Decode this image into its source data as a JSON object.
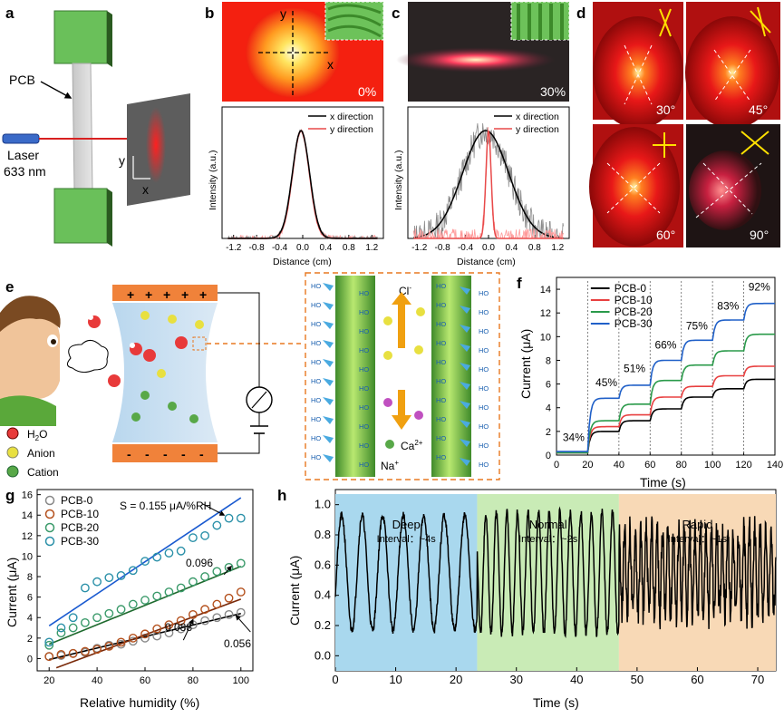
{
  "panels": {
    "a": {
      "letter": "a",
      "pcb": "PCB",
      "laser1": "Laser",
      "laser2": "633 nm",
      "y": "y",
      "x": "x"
    },
    "b": {
      "letter": "b",
      "pct": "0%",
      "x": "x",
      "y": "y",
      "legend": [
        "x direction",
        "y direction"
      ],
      "ylabel": "Intensity (a.u.)",
      "xlabel": "Distance (cm)",
      "ticks": [
        "-1.2",
        "-0.8",
        "-0.4",
        "0.0",
        "0.4",
        "0.8",
        "1.2"
      ]
    },
    "c": {
      "letter": "c",
      "pct": "30%",
      "legend": [
        "x direction",
        "y direction"
      ],
      "ylabel": "Intensity (a.u.)",
      "xlabel": "Distance (cm)",
      "ticks": [
        "-1.2",
        "-0.8",
        "-0.4",
        "0.0",
        "0.4",
        "0.8",
        "1.2"
      ]
    },
    "d": {
      "letter": "d",
      "angles": [
        "30°",
        "45°",
        "60°",
        "90°"
      ]
    },
    "e": {
      "letter": "e",
      "plus": "+",
      "minus": "-",
      "h2o": "H",
      "h2o_sub": "2",
      "h2o_end": "O",
      "anion": "Anion",
      "cation": "Cation",
      "cl": "Cl",
      "cl_sup": "-",
      "ca": "Ca",
      "ca_sup": "2+",
      "na": "Na",
      "na_sup": "+",
      "oh": "HO"
    },
    "f": {
      "letter": "f",
      "ylabel": "Current (μA)",
      "xlabel": "Time (s)",
      "pcts": [
        "34%",
        "45%",
        "51%",
        "66%",
        "75%",
        "83%",
        "92%"
      ]
    },
    "g": {
      "letter": "g",
      "ylabel": "Current (μA)",
      "xlabel": "Relative humidity (%)",
      "slope_main": "S = 0.155 μA/%RH",
      "slope_20": "0.096",
      "slope_10": "0.088",
      "slope_0": "0.056"
    },
    "h": {
      "letter": "h",
      "ylabel": "Current (μA)",
      "xlabel": "Time (s)",
      "regions": [
        {
          "name": "Deep",
          "interval": "Interval：~4s"
        },
        {
          "name": "Normal",
          "interval": "Interval：~2s"
        },
        {
          "name": "Rapid",
          "interval": "Interval：~1s"
        }
      ]
    }
  },
  "chart_data": [
    {
      "type": "line",
      "panel": "b",
      "xlabel": "Distance (cm)",
      "ylabel": "Intensity (a.u.)",
      "xlim": [
        -1.4,
        1.4
      ],
      "series": [
        {
          "name": "x direction",
          "color": "#000000"
        },
        {
          "name": "y direction",
          "color": "#e84a4a"
        }
      ]
    },
    {
      "type": "line",
      "panel": "c",
      "xlabel": "Distance (cm)",
      "ylabel": "Intensity (a.u.)",
      "xlim": [
        -1.4,
        1.4
      ],
      "series": [
        {
          "name": "x direction",
          "color": "#000000"
        },
        {
          "name": "y direction",
          "color": "#e84a4a"
        }
      ]
    },
    {
      "type": "line",
      "panel": "f",
      "xlabel": "Time (s)",
      "ylabel": "Current (μA)",
      "xlim": [
        0,
        140
      ],
      "ylim": [
        0,
        15
      ],
      "xticks": [
        0,
        20,
        40,
        60,
        80,
        100,
        120,
        140
      ],
      "yticks": [
        0,
        2,
        4,
        6,
        8,
        10,
        12,
        14
      ],
      "step_times": [
        0,
        20,
        40,
        60,
        80,
        100,
        120,
        140
      ],
      "series": [
        {
          "name": "PCB-0",
          "color": "#000000",
          "levels": [
            0.2,
            2.0,
            2.9,
            3.9,
            4.9,
            5.6,
            6.4
          ]
        },
        {
          "name": "PCB-10",
          "color": "#e84040",
          "levels": [
            0.2,
            2.4,
            3.4,
            4.9,
            5.8,
            6.7,
            7.5
          ]
        },
        {
          "name": "PCB-20",
          "color": "#2a9a4a",
          "levels": [
            0.2,
            2.9,
            4.3,
            6.3,
            7.6,
            8.8,
            10.2
          ]
        },
        {
          "name": "PCB-30",
          "color": "#2060c8",
          "levels": [
            0.3,
            4.8,
            5.9,
            8.0,
            9.7,
            11.4,
            12.8
          ]
        }
      ]
    },
    {
      "type": "scatter",
      "panel": "g",
      "xlabel": "Relative humidity (%)",
      "ylabel": "Current (μA)",
      "xlim": [
        15,
        105
      ],
      "ylim": [
        -1.2,
        16.5
      ],
      "xticks": [
        20,
        40,
        60,
        80,
        100
      ],
      "yticks": [
        0,
        2,
        4,
        6,
        8,
        10,
        12,
        14,
        16
      ],
      "x": [
        20,
        25,
        30,
        35,
        40,
        45,
        50,
        55,
        60,
        65,
        70,
        75,
        80,
        85,
        90,
        95,
        100
      ],
      "series": [
        {
          "name": "PCB-0",
          "color": "#888888",
          "values": [
            0.2,
            0.3,
            0.5,
            0.6,
            1.0,
            1.3,
            1.4,
            1.7,
            2.0,
            2.2,
            2.5,
            2.9,
            3.3,
            3.7,
            4.0,
            4.3,
            4.5
          ],
          "fit": [
            20,
            -0.1,
            100,
            4.4
          ]
        },
        {
          "name": "PCB-10",
          "color": "#b4501c",
          "values": [
            0.2,
            0.4,
            0.5,
            0.7,
            0.9,
            1.2,
            1.6,
            2.0,
            2.4,
            2.9,
            3.3,
            3.7,
            4.3,
            4.8,
            5.3,
            5.9,
            6.5
          ],
          "fit": [
            23,
            -0.9,
            100,
            5.8
          ]
        },
        {
          "name": "PCB-20",
          "color": "#3a9a6a",
          "values": [
            1.3,
            2.5,
            3.0,
            3.5,
            4.0,
            4.4,
            4.8,
            5.3,
            5.7,
            6.1,
            6.5,
            6.9,
            7.5,
            8.0,
            8.5,
            8.9,
            9.3
          ],
          "fit": [
            20,
            1.4,
            100,
            9.0
          ]
        },
        {
          "name": "PCB-30",
          "color": "#2a90a8",
          "values": [
            1.6,
            3.0,
            4.0,
            6.9,
            7.5,
            7.9,
            8.1,
            8.6,
            9.5,
            9.9,
            10.3,
            10.5,
            11.8,
            12.0,
            13.0,
            13.7,
            13.7
          ],
          "fit": [
            20,
            3.2,
            100,
            15.7
          ]
        }
      ]
    },
    {
      "type": "line",
      "panel": "h",
      "xlabel": "Time (s)",
      "ylabel": "Current (μA)",
      "xlim": [
        0,
        73
      ],
      "ylim": [
        -0.1,
        1.1
      ],
      "xticks": [
        0,
        10,
        20,
        30,
        40,
        50,
        60,
        70
      ],
      "yticks": [
        0.0,
        0.2,
        0.4,
        0.6,
        0.8,
        1.0
      ],
      "regions": [
        [
          0,
          23.5,
          "#a9d8ee"
        ],
        [
          23.5,
          47,
          "#c9ebb6"
        ],
        [
          47,
          73,
          "#f8d9b6"
        ]
      ],
      "series": [
        {
          "name": "",
          "color": "#000000"
        }
      ]
    }
  ]
}
